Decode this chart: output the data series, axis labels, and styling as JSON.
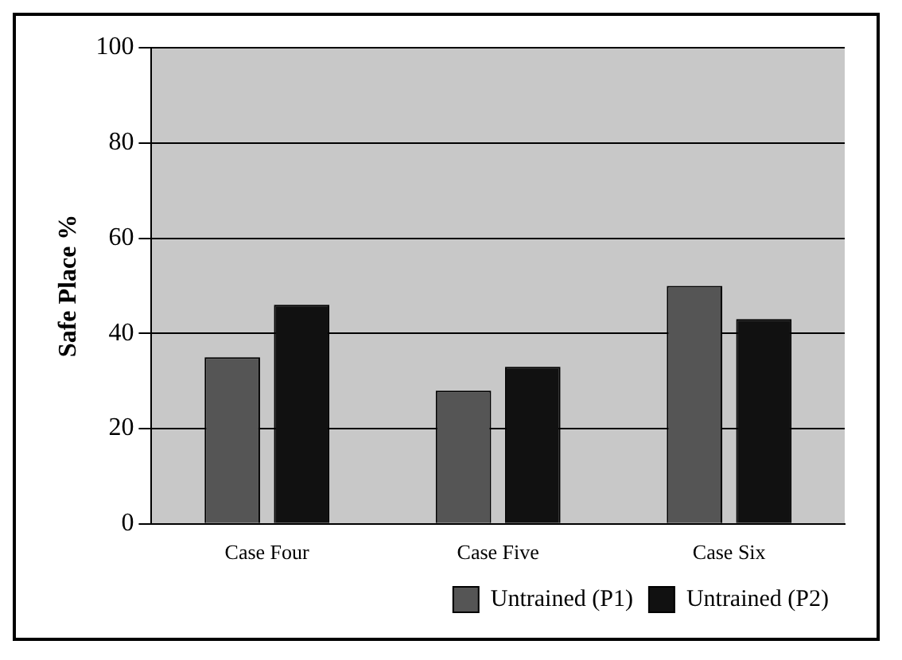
{
  "chart_data": {
    "type": "bar",
    "ylabel": "Safe Place %",
    "categories": [
      "Case Four",
      "Case Five",
      "Case Six"
    ],
    "series": [
      {
        "name": "Untrained (P1)",
        "color": "#555555",
        "values": [
          35,
          28,
          50
        ]
      },
      {
        "name": "Untrained (P2)",
        "color": "#111111",
        "values": [
          46,
          33,
          43
        ]
      }
    ],
    "ylim": [
      0,
      100
    ],
    "yticks": [
      0,
      20,
      40,
      60,
      80,
      100
    ],
    "grid": "y",
    "legend": "bottom right"
  }
}
